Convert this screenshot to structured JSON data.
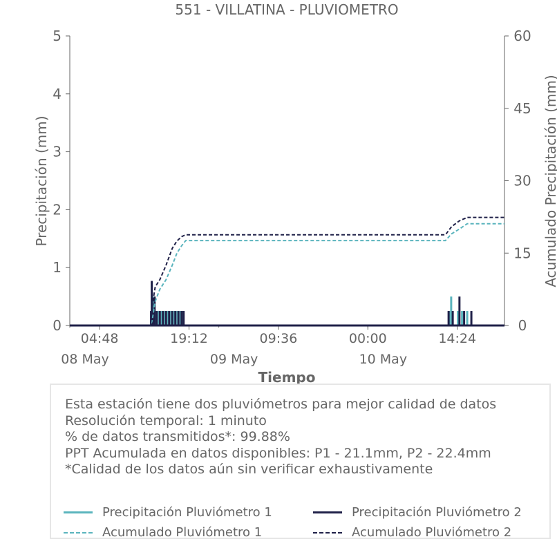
{
  "colors": {
    "p1": "#5ab4bd",
    "p2": "#1f2048",
    "text": "#666666",
    "axis": "#666666"
  },
  "chart_data": {
    "type": "line",
    "title": "551 - VILLATINA - PLUVIOMETRO",
    "xlabel": "Tiempo",
    "ylabel": "Precipitación (mm)",
    "y2label": "Acumulado Precipitación (mm)",
    "x_ticks": [
      "04:48",
      "19:12",
      "09:36",
      "00:00",
      "14:24"
    ],
    "x_date_ticks": [
      "08 May",
      "09 May",
      "10 May"
    ],
    "y_ticks": [
      "0",
      "1",
      "2",
      "3",
      "4",
      "5"
    ],
    "y2_ticks": [
      "0",
      "15",
      "30",
      "45",
      "60"
    ],
    "ylim": [
      0,
      5
    ],
    "y2lim": [
      0,
      60
    ],
    "x_range": [
      "2024-05-08 00:00",
      "2024-05-10 22:00"
    ],
    "grid": false,
    "series": [
      {
        "name": "Precipitación Pluviómetro 1",
        "axis": "left",
        "style": "solid",
        "color": "#5ab4bd",
        "points": [
          [
            "2024-05-08 13:10",
            0.0
          ],
          [
            "2024-05-08 13:12",
            0.75
          ],
          [
            "2024-05-08 13:14",
            0.25
          ],
          [
            "2024-05-08 13:30",
            0.5
          ],
          [
            "2024-05-08 13:50",
            0.25
          ],
          [
            "2024-05-08 14:20",
            0.25
          ],
          [
            "2024-05-08 14:50",
            0.25
          ],
          [
            "2024-05-08 15:20",
            0.25
          ],
          [
            "2024-05-08 15:50",
            0.25
          ],
          [
            "2024-05-08 16:20",
            0.25
          ],
          [
            "2024-05-08 16:50",
            0.25
          ],
          [
            "2024-05-08 17:20",
            0.25
          ],
          [
            "2024-05-08 17:50",
            0.25
          ],
          [
            "2024-05-08 18:10",
            0.25
          ],
          [
            "2024-05-10 13:05",
            0.25
          ],
          [
            "2024-05-10 13:25",
            0.5
          ],
          [
            "2024-05-10 14:30",
            0.25
          ],
          [
            "2024-05-10 15:10",
            0.25
          ],
          [
            "2024-05-10 16:00",
            0.25
          ]
        ]
      },
      {
        "name": "Precipitación Pluviómetro 2",
        "axis": "left",
        "style": "solid",
        "color": "#1f2048",
        "points": [
          [
            "2024-05-08 13:05",
            0.25
          ],
          [
            "2024-05-08 13:12",
            0.77
          ],
          [
            "2024-05-08 13:25",
            0.25
          ],
          [
            "2024-05-08 13:40",
            0.5
          ],
          [
            "2024-05-08 14:00",
            0.25
          ],
          [
            "2024-05-08 14:30",
            0.25
          ],
          [
            "2024-05-08 15:00",
            0.25
          ],
          [
            "2024-05-08 15:30",
            0.25
          ],
          [
            "2024-05-08 16:00",
            0.25
          ],
          [
            "2024-05-08 16:30",
            0.25
          ],
          [
            "2024-05-08 17:00",
            0.25
          ],
          [
            "2024-05-08 17:30",
            0.25
          ],
          [
            "2024-05-08 18:00",
            0.25
          ],
          [
            "2024-05-08 18:20",
            0.25
          ],
          [
            "2024-05-10 13:00",
            0.25
          ],
          [
            "2024-05-10 13:40",
            0.25
          ],
          [
            "2024-05-10 14:45",
            0.5
          ],
          [
            "2024-05-10 15:30",
            0.25
          ],
          [
            "2024-05-10 16:40",
            0.25
          ]
        ]
      },
      {
        "name": "Acumulado Pluviómetro 1",
        "axis": "right",
        "style": "dashed",
        "color": "#5ab4bd",
        "points": [
          [
            "2024-05-08 00:00",
            0
          ],
          [
            "2024-05-08 13:00",
            0
          ],
          [
            "2024-05-08 13:15",
            1.0
          ],
          [
            "2024-05-08 13:45",
            5.0
          ],
          [
            "2024-05-08 14:30",
            7.5
          ],
          [
            "2024-05-08 15:30",
            9.5
          ],
          [
            "2024-05-08 16:30",
            12.5
          ],
          [
            "2024-05-08 17:15",
            15.0
          ],
          [
            "2024-05-08 18:00",
            16.5
          ],
          [
            "2024-05-08 18:40",
            17.6
          ],
          [
            "2024-05-10 12:30",
            17.6
          ],
          [
            "2024-05-10 13:30",
            19.0
          ],
          [
            "2024-05-10 14:45",
            20.0
          ],
          [
            "2024-05-10 16:00",
            21.1
          ],
          [
            "2024-05-10 22:00",
            21.1
          ]
        ]
      },
      {
        "name": "Acumulado Pluviómetro 2",
        "axis": "right",
        "style": "dashed",
        "color": "#1f2048",
        "points": [
          [
            "2024-05-08 00:00",
            0
          ],
          [
            "2024-05-08 13:00",
            0
          ],
          [
            "2024-05-08 13:15",
            4.0
          ],
          [
            "2024-05-08 13:45",
            8.0
          ],
          [
            "2024-05-08 14:30",
            9.5
          ],
          [
            "2024-05-08 15:30",
            12.5
          ],
          [
            "2024-05-08 16:30",
            16.0
          ],
          [
            "2024-05-08 17:15",
            17.5
          ],
          [
            "2024-05-08 18:00",
            18.4
          ],
          [
            "2024-05-08 18:40",
            18.8
          ],
          [
            "2024-05-10 12:30",
            18.8
          ],
          [
            "2024-05-10 13:30",
            20.5
          ],
          [
            "2024-05-10 14:45",
            21.7
          ],
          [
            "2024-05-10 16:00",
            22.4
          ],
          [
            "2024-05-10 22:00",
            22.4
          ]
        ]
      }
    ]
  },
  "info": {
    "lines": [
      "Esta estación tiene dos pluviómetros para mejor calidad de datos",
      "Resolución temporal: 1 minuto",
      "% de datos transmitidos*: 99.88%",
      "PPT Acumulada en datos disponibles: P1 - 21.1mm, P2 - 22.4mm",
      "*Calidad de los datos aún sin verificar exhaustivamente"
    ]
  },
  "legend": {
    "items": [
      {
        "label": "Precipitación Pluviómetro 1",
        "color": "#5ab4bd",
        "style": "solid"
      },
      {
        "label": "Precipitación Pluviómetro 2",
        "color": "#1f2048",
        "style": "solid"
      },
      {
        "label": "Acumulado Pluviómetro 1",
        "color": "#5ab4bd",
        "style": "dashed"
      },
      {
        "label": "Acumulado Pluviómetro 2",
        "color": "#1f2048",
        "style": "dashed"
      }
    ]
  }
}
